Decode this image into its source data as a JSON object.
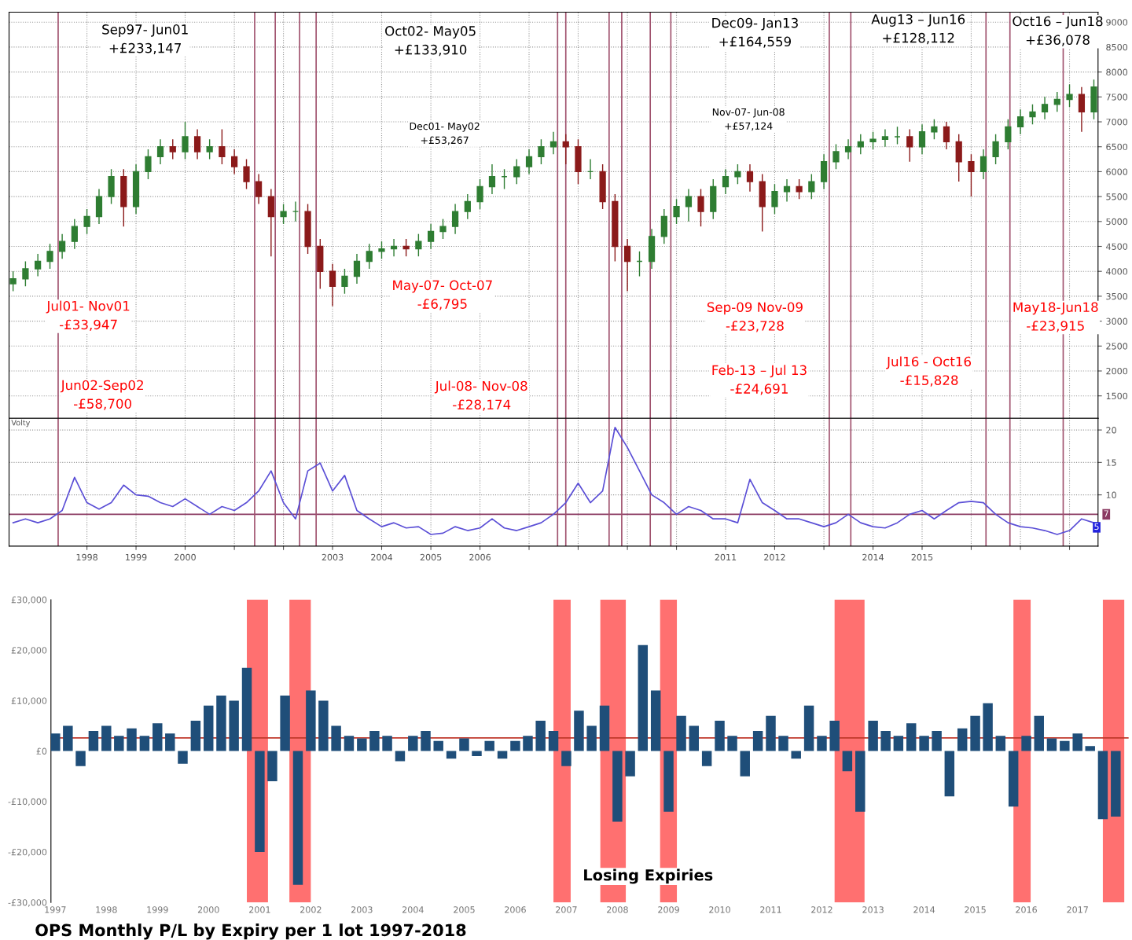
{
  "chart_data": [
    {
      "type": "candlestick",
      "x": [
        "1996-07",
        "1996-10",
        "1997-01",
        "1997-04",
        "1997-07",
        "1997-10",
        "1998-01",
        "1998-04",
        "1998-07",
        "1998-10",
        "1999-01",
        "1999-04",
        "1999-07",
        "1999-10",
        "2000-01",
        "2000-04",
        "2000-07",
        "2000-10",
        "2001-01",
        "2001-04",
        "2001-07",
        "2001-10",
        "2002-01",
        "2002-04",
        "2002-07",
        "2002-10",
        "2003-01",
        "2003-04",
        "2003-07",
        "2003-10",
        "2004-01",
        "2004-04",
        "2004-07",
        "2004-10",
        "2005-01",
        "2005-04",
        "2005-07",
        "2005-10",
        "2006-01",
        "2006-04",
        "2006-07",
        "2006-10",
        "2007-01",
        "2007-04",
        "2007-07",
        "2007-10",
        "2008-01",
        "2008-04",
        "2008-07",
        "2008-10",
        "2009-01",
        "2009-04",
        "2009-07",
        "2009-10",
        "2010-01",
        "2010-04",
        "2010-07",
        "2010-10",
        "2011-01",
        "2011-04",
        "2011-07",
        "2011-10",
        "2012-01",
        "2012-04",
        "2012-07",
        "2012-10",
        "2013-01",
        "2013-04",
        "2013-07",
        "2013-10",
        "2014-01",
        "2014-04",
        "2014-07",
        "2014-10",
        "2015-01",
        "2015-04",
        "2015-07",
        "2015-10",
        "2016-01",
        "2016-04",
        "2016-07",
        "2016-10",
        "2017-01",
        "2017-04",
        "2017-07",
        "2017-10",
        "2018-01",
        "2018-04",
        "2018-07"
      ],
      "ohlc": [
        [
          3750,
          4000,
          3600,
          3850
        ],
        [
          3850,
          4200,
          3700,
          4050
        ],
        [
          4050,
          4350,
          3900,
          4200
        ],
        [
          4200,
          4550,
          4050,
          4400
        ],
        [
          4400,
          4750,
          4250,
          4600
        ],
        [
          4600,
          5050,
          4450,
          4900
        ],
        [
          4900,
          5250,
          4750,
          5100
        ],
        [
          5100,
          5650,
          4950,
          5500
        ],
        [
          5500,
          6050,
          5350,
          5900
        ],
        [
          5900,
          6050,
          4900,
          5300
        ],
        [
          5300,
          6150,
          5150,
          6000
        ],
        [
          6000,
          6450,
          5850,
          6300
        ],
        [
          6300,
          6650,
          6150,
          6500
        ],
        [
          6500,
          6650,
          6250,
          6400
        ],
        [
          6400,
          7000,
          6250,
          6700
        ],
        [
          6700,
          6850,
          6250,
          6400
        ],
        [
          6400,
          6650,
          6250,
          6500
        ],
        [
          6500,
          6850,
          6150,
          6300
        ],
        [
          6300,
          6450,
          5950,
          6100
        ],
        [
          6100,
          6250,
          5650,
          5800
        ],
        [
          5800,
          5950,
          5350,
          5500
        ],
        [
          5500,
          5650,
          4300,
          5100
        ],
        [
          5100,
          5350,
          4950,
          5200
        ],
        [
          5200,
          5400,
          5000,
          5200
        ],
        [
          5200,
          5350,
          4350,
          4500
        ],
        [
          4500,
          4650,
          3650,
          4000
        ],
        [
          4000,
          4150,
          3300,
          3700
        ],
        [
          3700,
          4050,
          3550,
          3900
        ],
        [
          3900,
          4350,
          3750,
          4200
        ],
        [
          4200,
          4550,
          4050,
          4400
        ],
        [
          4400,
          4600,
          4250,
          4450
        ],
        [
          4450,
          4650,
          4300,
          4500
        ],
        [
          4500,
          4650,
          4300,
          4450
        ],
        [
          4450,
          4750,
          4300,
          4600
        ],
        [
          4600,
          4950,
          4450,
          4800
        ],
        [
          4800,
          5050,
          4650,
          4900
        ],
        [
          4900,
          5350,
          4750,
          5200
        ],
        [
          5200,
          5550,
          5050,
          5400
        ],
        [
          5400,
          5850,
          5250,
          5700
        ],
        [
          5700,
          6150,
          5550,
          5900
        ],
        [
          5900,
          6050,
          5650,
          5900
        ],
        [
          5900,
          6250,
          5750,
          6100
        ],
        [
          6100,
          6450,
          5950,
          6300
        ],
        [
          6300,
          6650,
          6150,
          6500
        ],
        [
          6500,
          6800,
          6350,
          6600
        ],
        [
          6600,
          6750,
          6150,
          6500
        ],
        [
          6500,
          6650,
          5750,
          6000
        ],
        [
          6000,
          6250,
          5850,
          6000
        ],
        [
          6000,
          6150,
          5250,
          5400
        ],
        [
          5400,
          5550,
          4200,
          4500
        ],
        [
          4500,
          4650,
          3600,
          4200
        ],
        [
          4200,
          4400,
          3900,
          4200
        ],
        [
          4200,
          4850,
          4050,
          4700
        ],
        [
          4700,
          5250,
          4550,
          5100
        ],
        [
          5100,
          5450,
          4950,
          5300
        ],
        [
          5300,
          5650,
          5000,
          5500
        ],
        [
          5500,
          5650,
          4900,
          5200
        ],
        [
          5200,
          5850,
          5050,
          5700
        ],
        [
          5700,
          6050,
          5550,
          5900
        ],
        [
          5900,
          6150,
          5750,
          6000
        ],
        [
          6000,
          6150,
          5600,
          5800
        ],
        [
          5800,
          5950,
          4800,
          5300
        ],
        [
          5300,
          5750,
          5150,
          5600
        ],
        [
          5600,
          5850,
          5400,
          5700
        ],
        [
          5700,
          5850,
          5450,
          5600
        ],
        [
          5600,
          5950,
          5450,
          5800
        ],
        [
          5800,
          6350,
          5650,
          6200
        ],
        [
          6200,
          6550,
          6050,
          6400
        ],
        [
          6400,
          6650,
          6250,
          6500
        ],
        [
          6500,
          6750,
          6350,
          6600
        ],
        [
          6600,
          6800,
          6450,
          6650
        ],
        [
          6650,
          6850,
          6500,
          6700
        ],
        [
          6700,
          6900,
          6550,
          6700
        ],
        [
          6700,
          6850,
          6200,
          6500
        ],
        [
          6500,
          6950,
          6350,
          6800
        ],
        [
          6800,
          7050,
          6650,
          6900
        ],
        [
          6900,
          7000,
          6450,
          6600
        ],
        [
          6600,
          6750,
          5800,
          6200
        ],
        [
          6200,
          6350,
          5500,
          6000
        ],
        [
          6000,
          6450,
          5850,
          6300
        ],
        [
          6300,
          6750,
          6150,
          6600
        ],
        [
          6600,
          7050,
          6450,
          6900
        ],
        [
          6900,
          7250,
          6750,
          7100
        ],
        [
          7100,
          7350,
          6950,
          7200
        ],
        [
          7200,
          7500,
          7050,
          7350
        ],
        [
          7350,
          7600,
          7200,
          7450
        ],
        [
          7450,
          7750,
          7300,
          7550
        ],
        [
          7550,
          7700,
          6800,
          7200
        ],
        [
          7200,
          7850,
          7050,
          7700
        ]
      ],
      "colors": [
        "#2e7d32",
        "#2e7d32",
        "#2e7d32",
        "#2e7d32",
        "#2e7d32",
        "#2e7d32",
        "#2e7d32",
        "#2e7d32",
        "#2e7d32",
        "#8b1a1a",
        "#2e7d32",
        "#2e7d32",
        "#2e7d32",
        "#8b1a1a",
        "#2e7d32",
        "#8b1a1a",
        "#2e7d32",
        "#8b1a1a",
        "#8b1a1a",
        "#8b1a1a",
        "#8b1a1a",
        "#8b1a1a",
        "#2e7d32",
        "#2e7d32",
        "#8b1a1a",
        "#8b1a1a",
        "#8b1a1a",
        "#2e7d32",
        "#2e7d32",
        "#2e7d32",
        "#2e7d32",
        "#2e7d32",
        "#8b1a1a",
        "#2e7d32",
        "#2e7d32",
        "#2e7d32",
        "#2e7d32",
        "#2e7d32",
        "#2e7d32",
        "#2e7d32",
        "#2e7d32",
        "#2e7d32",
        "#2e7d32",
        "#2e7d32",
        "#2e7d32",
        "#8b1a1a",
        "#8b1a1a",
        "#2e7d32",
        "#8b1a1a",
        "#8b1a1a",
        "#8b1a1a",
        "#2e7d32",
        "#2e7d32",
        "#2e7d32",
        "#2e7d32",
        "#2e7d32",
        "#8b1a1a",
        "#2e7d32",
        "#2e7d32",
        "#2e7d32",
        "#8b1a1a",
        "#8b1a1a",
        "#2e7d32",
        "#2e7d32",
        "#8b1a1a",
        "#2e7d32",
        "#2e7d32",
        "#2e7d32",
        "#2e7d32",
        "#2e7d32",
        "#2e7d32",
        "#2e7d32",
        "#2e7d32",
        "#8b1a1a",
        "#2e7d32",
        "#2e7d32",
        "#8b1a1a",
        "#8b1a1a",
        "#8b1a1a",
        "#2e7d32",
        "#2e7d32",
        "#2e7d32",
        "#2e7d32",
        "#2e7d32",
        "#2e7d32",
        "#2e7d32",
        "#2e7d32",
        "#8b1a1a",
        "#2e7d32"
      ],
      "xlim": [
        "1996-06",
        "2018-08"
      ],
      "xticks": [
        "1998",
        "1999",
        "2000",
        "2001",
        "2002",
        "2003",
        "2004",
        "2005",
        "2006",
        "2007",
        "2008",
        "2009",
        "2010",
        "2011",
        "2012",
        "2013",
        "2014",
        "2015",
        "2016",
        "2017",
        "2018"
      ],
      "ylim": [
        1050,
        9200
      ],
      "yticks": [
        1500,
        2000,
        2500,
        3000,
        3500,
        4000,
        4500,
        5000,
        5500,
        6000,
        6500,
        7000,
        7500,
        8000,
        8500,
        9000
      ],
      "tick_labels": "y",
      "grid": true,
      "ref_lines": [
        {
          "axis": "x",
          "value": "1997-06",
          "color": "#a0526e"
        },
        {
          "axis": "x",
          "value": "2001-06",
          "color": "#a0526e"
        },
        {
          "axis": "x",
          "value": "2001-11",
          "color": "#a0526e"
        },
        {
          "axis": "x",
          "value": "2002-05",
          "color": "#a0526e"
        },
        {
          "axis": "x",
          "value": "2002-09",
          "color": "#a0526e"
        },
        {
          "axis": "x",
          "value": "2007-08",
          "color": "#a0526e"
        },
        {
          "axis": "x",
          "value": "2007-10",
          "color": "#a0526e"
        },
        {
          "axis": "x",
          "value": "2008-08-18",
          "color": "#a0526e"
        },
        {
          "axis": "x",
          "value": "2008-11-20",
          "color": "#a0526e"
        },
        {
          "axis": "x",
          "value": "2009-06-20",
          "color": "#a0526e"
        },
        {
          "axis": "x",
          "value": "2009-11-20",
          "color": "#a0526e"
        },
        {
          "axis": "x",
          "value": "2013-02-10",
          "color": "#a0526e"
        },
        {
          "axis": "x",
          "value": "2013-07-20",
          "color": "#a0526e"
        },
        {
          "axis": "x",
          "value": "2016-04-20",
          "color": "#a0526e"
        },
        {
          "axis": "x",
          "value": "2016-10-15",
          "color": "#a0526e"
        },
        {
          "axis": "x",
          "value": "2017-11-15",
          "color": "#a0526e"
        }
      ],
      "annotations": [
        "Sep97- Jun01\n+£233,147",
        "Oct02- May05\n+£133,910",
        "Dec09- Jan13\n+£164,559",
        "Aug13 – Jun16\n+£128,112",
        "Oct16 – Jun18\n+£36,078",
        "Dec01- May02\n+£53,267",
        "Nov-07- Jun-08\n+£57,124",
        "Jul01- Nov01\n-£33,947",
        "Jun02-Sep02\n-£58,700",
        "May-07- Oct-07\n-£6,795",
        "Jul-08- Nov-08\n-£28,174",
        "Sep-09 Nov-09\n-£23,728",
        "Feb-13 – Jul 13\n-£24,691",
        "Jul16 - Oct16\n-£15,828",
        "May18-Jun18\n-£23,915"
      ]
    },
    {
      "type": "line",
      "title": "Volty",
      "x": [
        "1996-07",
        "1996-10",
        "1997-01",
        "1997-04",
        "1997-07",
        "1997-10",
        "1998-01",
        "1998-04",
        "1998-07",
        "1998-10",
        "1999-01",
        "1999-04",
        "1999-07",
        "1999-10",
        "2000-01",
        "2000-04",
        "2000-07",
        "2000-10",
        "2001-01",
        "2001-04",
        "2001-07",
        "2001-10",
        "2002-01",
        "2002-04",
        "2002-07",
        "2002-10",
        "2003-01",
        "2003-04",
        "2003-07",
        "2003-10",
        "2004-01",
        "2004-04",
        "2004-07",
        "2004-10",
        "2005-01",
        "2005-04",
        "2005-07",
        "2005-10",
        "2006-01",
        "2006-04",
        "2006-07",
        "2006-10",
        "2007-01",
        "2007-04",
        "2007-07",
        "2007-10",
        "2008-01",
        "2008-04",
        "2008-07",
        "2008-10",
        "2009-01",
        "2009-04",
        "2009-07",
        "2009-10",
        "2010-01",
        "2010-04",
        "2010-07",
        "2010-10",
        "2011-01",
        "2011-04",
        "2011-07",
        "2011-10",
        "2012-01",
        "2012-04",
        "2012-07",
        "2012-10",
        "2013-01",
        "2013-04",
        "2013-07",
        "2013-10",
        "2014-01",
        "2014-04",
        "2014-07",
        "2014-10",
        "2015-01",
        "2015-04",
        "2015-07",
        "2015-10",
        "2016-01",
        "2016-04",
        "2016-07",
        "2016-10",
        "2017-01",
        "2017-04",
        "2017-07",
        "2017-10",
        "2018-01",
        "2018-04",
        "2018-07"
      ],
      "series": [
        {
          "color": "#5b4fd6",
          "values": [
            5.7,
            6.3,
            5.7,
            6.3,
            7.6,
            12.7,
            8.8,
            7.8,
            8.8,
            11.5,
            10,
            9.8,
            8.8,
            8.2,
            9.4,
            8.2,
            7,
            8.2,
            7.6,
            8.8,
            10.6,
            13.7,
            8.8,
            6.3,
            13.7,
            14.9,
            10.6,
            13,
            7.6,
            6.3,
            5.1,
            5.7,
            4.9,
            5.1,
            3.9,
            4.1,
            5.1,
            4.5,
            4.9,
            6.3,
            4.9,
            4.5,
            5.1,
            5.7,
            7,
            8.8,
            11.8,
            8.8,
            10.6,
            20.4,
            17.3,
            13.7,
            10,
            8.8,
            7,
            8.2,
            7.6,
            6.3,
            6.3,
            5.7,
            12.4,
            8.8,
            7.6,
            6.3,
            6.3,
            5.7,
            5.1,
            5.7,
            7,
            5.7,
            5.1,
            4.9,
            5.7,
            7,
            7.6,
            6.3,
            7.6,
            8.8,
            9,
            8.8,
            7,
            5.7,
            5.1,
            4.9,
            4.5,
            3.9,
            4.5,
            6.3,
            5.7
          ]
        }
      ],
      "xlim": [
        "1996-06",
        "2018-08"
      ],
      "xticks": [
        "1998",
        "1999",
        "2000",
        {
          "value": "2001",
          "label": null
        },
        {
          "value": "2002",
          "label": null
        },
        {
          "value": "2003",
          "label": "2003"
        },
        "2004",
        "2005",
        "2006",
        {
          "value": "2007",
          "label": null
        },
        {
          "value": "2008",
          "label": null
        },
        {
          "value": "2009",
          "label": null
        },
        {
          "value": "2010",
          "label": null
        },
        "2011",
        "2012",
        {
          "value": "2013",
          "label": null
        },
        "2014",
        "2015",
        {
          "value": "2016",
          "label": null
        },
        {
          "value": "2017",
          "label": null
        },
        {
          "value": "2018",
          "label": null
        }
      ],
      "ylim": [
        2.1,
        21.8
      ],
      "yticks": [
        10,
        15,
        20
      ],
      "grid": true,
      "ref_lines": [
        {
          "axis": "y",
          "value": 7,
          "label": "7",
          "color": "#8b3a62"
        },
        {
          "axis": "x",
          "value": "1997-06",
          "color": "#a0526e"
        },
        {
          "axis": "x",
          "value": "2001-06",
          "color": "#a0526e"
        },
        {
          "axis": "x",
          "value": "2001-11",
          "color": "#a0526e"
        },
        {
          "axis": "x",
          "value": "2002-05",
          "color": "#a0526e"
        },
        {
          "axis": "x",
          "value": "2002-09",
          "color": "#a0526e"
        },
        {
          "axis": "x",
          "value": "2007-08",
          "color": "#a0526e"
        },
        {
          "axis": "x",
          "value": "2007-10",
          "color": "#a0526e"
        },
        {
          "axis": "x",
          "value": "2008-08-18",
          "color": "#a0526e"
        },
        {
          "axis": "x",
          "value": "2008-11-20",
          "color": "#a0526e"
        },
        {
          "axis": "x",
          "value": "2009-06-20",
          "color": "#a0526e"
        },
        {
          "axis": "x",
          "value": "2009-11-20",
          "color": "#a0526e"
        },
        {
          "axis": "x",
          "value": "2013-02-10",
          "color": "#a0526e"
        },
        {
          "axis": "x",
          "value": "2013-07-20",
          "color": "#a0526e"
        },
        {
          "axis": "x",
          "value": "2016-04-20",
          "color": "#a0526e"
        },
        {
          "axis": "x",
          "value": "2016-10-15",
          "color": "#a0526e"
        },
        {
          "axis": "x",
          "value": "2017-11-15",
          "color": "#a0526e"
        }
      ],
      "annotations": [
        {
          "text": "5",
          "x": "2018-07",
          "y": 5
        }
      ]
    },
    {
      "type": "bar",
      "title": "OPS Monthly P/L by Expiry per 1 lot 1997-2018",
      "x": [
        "1997-01",
        "1997-04",
        "1997-07",
        "1997-10",
        "1998-01",
        "1998-04",
        "1998-07",
        "1998-10",
        "1999-01",
        "1999-04",
        "1999-07",
        "1999-10",
        "2000-01",
        "2000-04",
        "2000-07",
        "2000-10",
        "2001-01",
        "2001-04",
        "2001-07",
        "2001-10",
        "2002-01",
        "2002-04",
        "2002-07",
        "2002-10",
        "2003-01",
        "2003-04",
        "2003-07",
        "2003-10",
        "2004-01",
        "2004-04",
        "2004-07",
        "2004-10",
        "2005-01",
        "2005-04",
        "2005-07",
        "2005-10",
        "2006-01",
        "2006-04",
        "2006-07",
        "2006-10",
        "2007-01",
        "2007-04",
        "2007-07",
        "2007-10",
        "2008-01",
        "2008-04",
        "2008-07",
        "2008-10",
        "2009-01",
        "2009-04",
        "2009-07",
        "2009-10",
        "2010-01",
        "2010-04",
        "2010-07",
        "2010-10",
        "2011-01",
        "2011-04",
        "2011-07",
        "2011-10",
        "2012-01",
        "2012-04",
        "2012-07",
        "2012-10",
        "2013-01",
        "2013-04",
        "2013-07",
        "2013-10",
        "2014-01",
        "2014-04",
        "2014-07",
        "2014-10",
        "2015-01",
        "2015-04",
        "2015-07",
        "2015-10",
        "2016-01",
        "2016-04",
        "2016-07",
        "2016-10",
        "2017-01",
        "2017-04",
        "2017-07",
        "2017-10"
      ],
      "series": [
        {
          "color": "#1f4e79",
          "values": [
            3500,
            5000,
            -3000,
            4000,
            5000,
            3000,
            4500,
            3000,
            5500,
            3500,
            -2500,
            6000,
            9000,
            11000,
            10000,
            16500,
            -20000,
            -6000,
            11000,
            -26500,
            12000,
            10000,
            5000,
            3000,
            2500,
            4000,
            3000,
            -2000,
            3000,
            4000,
            2000,
            -1500,
            2500,
            -1000,
            2000,
            -1500,
            2000,
            3000,
            6000,
            4000,
            -3000,
            8000,
            5000,
            9000,
            -14000,
            -5000,
            21000,
            12000,
            -12000,
            7000,
            5000,
            -3000,
            6000,
            3000,
            -5000,
            4000,
            7000,
            3000,
            -1500,
            9000,
            3000,
            6000,
            -4000,
            -12000,
            6000,
            4000,
            3000,
            5500,
            3000,
            4000,
            -9000,
            4500,
            7000,
            9500,
            3000,
            -11000,
            3000,
            7000,
            2500,
            2000,
            3500,
            1000,
            -13500,
            -13000
          ]
        }
      ],
      "xlim": [
        "1996-12",
        "2018-01"
      ],
      "xticks": [
        "1997",
        "1998",
        "1999",
        "2000",
        "2001",
        "2002",
        "2003",
        "2004",
        "2005",
        "2006",
        "2007",
        "2008",
        "2009",
        "2010",
        "2011",
        "2012",
        "2013",
        "2014",
        "2015",
        "2016",
        "2017"
      ],
      "ylim": [
        -30000,
        30000
      ],
      "yticks": [
        {
          "value": 30000,
          "label": "£30,000"
        },
        {
          "value": 20000,
          "label": "£20,000"
        },
        {
          "value": 10000,
          "label": "£10,000"
        },
        {
          "value": 0,
          "label": "£0"
        },
        {
          "value": -10000,
          "label": "-£10,000"
        },
        {
          "value": -20000,
          "label": "-£20,000"
        },
        {
          "value": -30000,
          "label": "-£30,000"
        }
      ],
      "ref_lines": [
        {
          "axis": "y",
          "value": 2600,
          "color": "#c0392b"
        }
      ],
      "bands": [
        {
          "axis": "x",
          "from": "2000-10",
          "to": "2001-03",
          "color": "#ff7070"
        },
        {
          "axis": "x",
          "from": "2001-08",
          "to": "2002-01",
          "color": "#ff7070"
        },
        {
          "axis": "x",
          "from": "2006-10",
          "to": "2007-02",
          "color": "#ff7070"
        },
        {
          "axis": "x",
          "from": "2007-09",
          "to": "2008-03",
          "color": "#ff7070"
        },
        {
          "axis": "x",
          "from": "2008-11",
          "to": "2009-03",
          "color": "#ff7070"
        },
        {
          "axis": "x",
          "from": "2012-04",
          "to": "2012-11",
          "color": "#ff7070"
        },
        {
          "axis": "x",
          "from": "2015-10",
          "to": "2016-02",
          "color": "#ff7070"
        },
        {
          "axis": "x",
          "from": "2017-07",
          "to": "2017-12",
          "color": "#ff7070"
        }
      ],
      "annotations": [
        "Losing Expiries"
      ]
    }
  ]
}
